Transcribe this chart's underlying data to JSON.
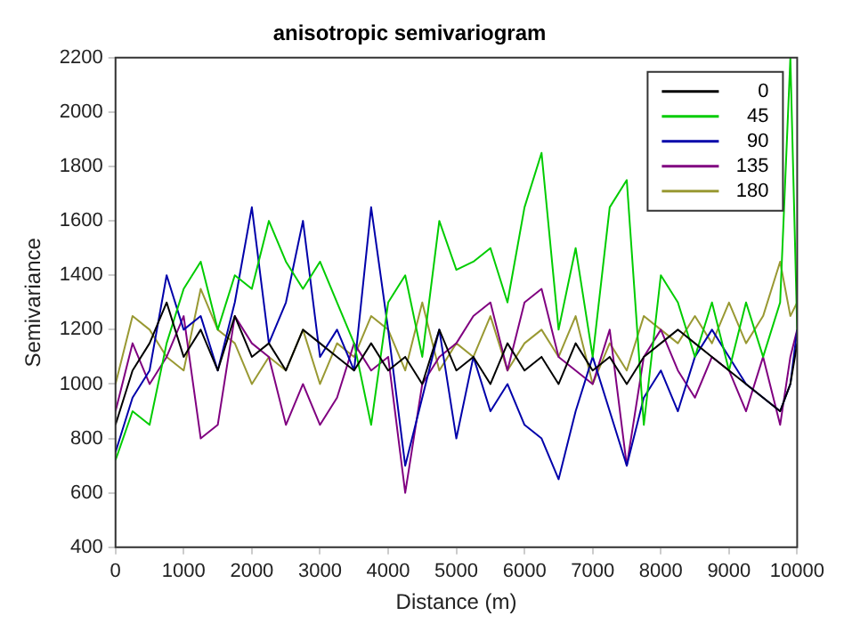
{
  "chart_data": {
    "type": "line",
    "title": "anisotropic semivariogram",
    "xlabel": "Distance (m)",
    "ylabel": "Semivariance",
    "x": [
      0,
      250,
      500,
      750,
      1000,
      1250,
      1500,
      1750,
      2000,
      2250,
      2500,
      2750,
      3000,
      3250,
      3500,
      3750,
      4000,
      4250,
      4500,
      4750,
      5000,
      5250,
      5500,
      5750,
      6000,
      6250,
      6500,
      6750,
      7000,
      7250,
      7500,
      7750,
      8000,
      8250,
      8500,
      8750,
      9000,
      9250,
      9500,
      9750,
      9900,
      10000
    ],
    "series": [
      {
        "name": "0",
        "color": "#000000",
        "values": [
          850,
          1050,
          1150,
          1300,
          1100,
          1200,
          1050,
          1250,
          1100,
          1150,
          1050,
          1200,
          1150,
          1100,
          1050,
          1150,
          1050,
          1100,
          1000,
          1200,
          1050,
          1100,
          1000,
          1150,
          1050,
          1100,
          1000,
          1150,
          1050,
          1100,
          1000,
          1100,
          1150,
          1200,
          1150,
          1100,
          1050,
          1000,
          950,
          900,
          1000,
          1150
        ]
      },
      {
        "name": "45",
        "color": "#00cc00",
        "values": [
          720,
          900,
          850,
          1150,
          1350,
          1450,
          1200,
          1400,
          1350,
          1600,
          1450,
          1350,
          1450,
          1300,
          1150,
          850,
          1300,
          1400,
          1100,
          1600,
          1420,
          1450,
          1500,
          1300,
          1650,
          1850,
          1200,
          1500,
          1100,
          1650,
          1750,
          850,
          1400,
          1300,
          1100,
          1300,
          1050,
          1300,
          1100,
          1300,
          2200,
          1200
        ]
      },
      {
        "name": "90",
        "color": "#0000aa",
        "values": [
          750,
          950,
          1050,
          1400,
          1200,
          1250,
          1050,
          1300,
          1650,
          1150,
          1300,
          1600,
          1100,
          1200,
          1050,
          1650,
          1200,
          700,
          950,
          1200,
          800,
          1100,
          900,
          1000,
          850,
          800,
          650,
          900,
          1100,
          900,
          700,
          950,
          1050,
          900,
          1100,
          1200,
          1100,
          1000,
          950,
          900,
          1000,
          1200
        ]
      },
      {
        "name": "135",
        "color": "#800080",
        "values": [
          900,
          1150,
          1000,
          1100,
          1250,
          800,
          850,
          1250,
          1150,
          1100,
          850,
          1000,
          850,
          950,
          1150,
          1050,
          1100,
          600,
          1000,
          1100,
          1150,
          1250,
          1300,
          1050,
          1300,
          1350,
          1100,
          1050,
          1000,
          1200,
          700,
          1100,
          1200,
          1050,
          950,
          1100,
          1050,
          900,
          1100,
          850,
          1100,
          1200
        ]
      },
      {
        "name": "180",
        "color": "#999933",
        "values": [
          1000,
          1250,
          1200,
          1100,
          1050,
          1350,
          1200,
          1150,
          1000,
          1100,
          1050,
          1200,
          1000,
          1150,
          1100,
          1250,
          1200,
          1050,
          1300,
          1050,
          1150,
          1100,
          1250,
          1050,
          1150,
          1200,
          1100,
          1250,
          1000,
          1150,
          1050,
          1250,
          1200,
          1150,
          1250,
          1150,
          1300,
          1150,
          1250,
          1450,
          1250,
          1300
        ]
      }
    ],
    "xlim": [
      0,
      10000
    ],
    "xticks": [
      0,
      1000,
      2000,
      3000,
      4000,
      5000,
      6000,
      7000,
      8000,
      9000,
      10000
    ],
    "ylim": [
      400,
      2200
    ],
    "yticks": [
      400,
      600,
      800,
      1000,
      1200,
      1400,
      1600,
      1800,
      2000,
      2200
    ],
    "legend": "top right",
    "grid": false,
    "marker": "none",
    "line_style": "solid"
  }
}
